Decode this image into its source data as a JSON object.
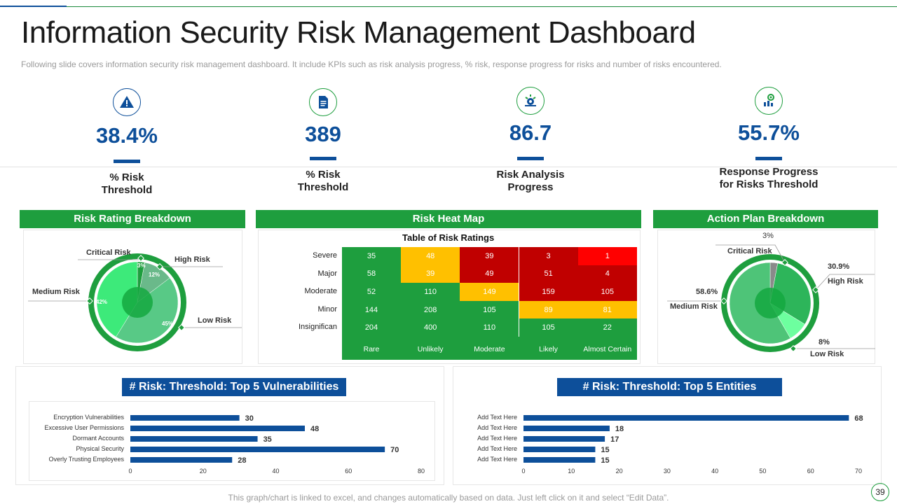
{
  "header": {
    "title": "Information Security Risk Management Dashboard",
    "subtitle": "Following slide covers information security risk management dashboard. It include KPIs such as risk analysis progress, % risk, response progress for risks and number of risks encountered."
  },
  "kpis": [
    {
      "icon": "warning-icon",
      "value": "38.4%",
      "label_line1": "% Risk",
      "label_line2": "Threshold"
    },
    {
      "icon": "document-icon",
      "value": "389",
      "label_line1": "% Risk",
      "label_line2": "Threshold"
    },
    {
      "icon": "analysis-icon",
      "value": "86.7",
      "label_line1": "Risk Analysis",
      "label_line2": "Progress"
    },
    {
      "icon": "target-progress-icon",
      "value": "55.7%",
      "label_line1": "Response Progress",
      "label_line2": "for Risks  Threshold"
    }
  ],
  "panels": {
    "risk_rating_title": "Risk Rating Breakdown",
    "heat_map_title": "Risk Heat Map",
    "action_plan_title": "Action Plan Breakdown",
    "vulnerabilities_title": "# Risk:  Threshold: Top 5 Vulnerabilities",
    "entities_title": "# Risk:  Threshold: Top 5 Entities"
  },
  "colors": {
    "green": "#1e9e3e",
    "blue": "#0d4f9a",
    "yellow": "#ffc000",
    "dark_red": "#c00000",
    "red": "#ff0000"
  },
  "chart_data": [
    {
      "type": "pie",
      "title": "Risk Rating Breakdown",
      "categories": [
        "Critical Risk",
        "High Risk",
        "Low Risk",
        "Medium Risk"
      ],
      "values": [
        3,
        12,
        45,
        42
      ],
      "value_labels": [
        "3%",
        "12%",
        "45%",
        "42%"
      ]
    },
    {
      "type": "heatmap",
      "title": "Table of Risk Ratings",
      "rows": [
        "Severe",
        "Major",
        "Moderate",
        "Minor",
        "Insignifican"
      ],
      "columns": [
        "Rare",
        "Unlikely",
        "Moderate",
        "Likely",
        "Almost Certain"
      ],
      "values": [
        [
          35,
          48,
          39,
          3,
          1
        ],
        [
          58,
          39,
          49,
          51,
          4
        ],
        [
          52,
          110,
          149,
          159,
          105
        ],
        [
          144,
          208,
          105,
          89,
          81
        ],
        [
          204,
          400,
          110,
          105,
          22
        ]
      ],
      "levels": [
        [
          "g",
          "y",
          "d",
          "d",
          "r"
        ],
        [
          "g",
          "y",
          "d",
          "d",
          "d"
        ],
        [
          "g",
          "g",
          "y",
          "d",
          "d"
        ],
        [
          "g",
          "g",
          "g",
          "y",
          "y"
        ],
        [
          "g",
          "g",
          "g",
          "g",
          "g"
        ]
      ]
    },
    {
      "type": "pie",
      "title": "Action Plan Breakdown",
      "categories": [
        "Critical Risk",
        "High Risk",
        "Low Risk",
        "Medium Risk"
      ],
      "values": [
        3,
        30.9,
        8,
        58.6
      ],
      "value_labels": [
        "3%",
        "30.9%",
        "8%",
        "58.6%"
      ]
    },
    {
      "type": "bar",
      "orientation": "horizontal",
      "title": "# Risk:  Threshold: Top 5 Vulnerabilities",
      "categories": [
        "Encryption Vulnerabilities",
        "Excessive User Permissions",
        "Dormant Accounts",
        "Physical Security",
        "Overly Trusting Employees"
      ],
      "values": [
        30,
        48,
        35,
        70,
        28
      ],
      "xlim": [
        0,
        80
      ],
      "ticks": [
        0,
        20,
        40,
        60,
        80
      ]
    },
    {
      "type": "bar",
      "orientation": "horizontal",
      "title": "# Risk:  Threshold: Top 5 Entities",
      "categories": [
        "Add Text Here",
        "Add Text Here",
        "Add Text Here",
        "Add Text Here",
        "Add Text Here"
      ],
      "values": [
        68,
        18,
        17,
        15,
        15
      ],
      "xlim": [
        0,
        70
      ],
      "ticks": [
        0,
        10,
        20,
        30,
        40,
        50,
        60,
        70
      ]
    }
  ],
  "footer": {
    "note": "This graph/chart is linked to excel, and changes automatically based on data. Just left click on it and select “Edit Data”.",
    "page_number": "39"
  }
}
